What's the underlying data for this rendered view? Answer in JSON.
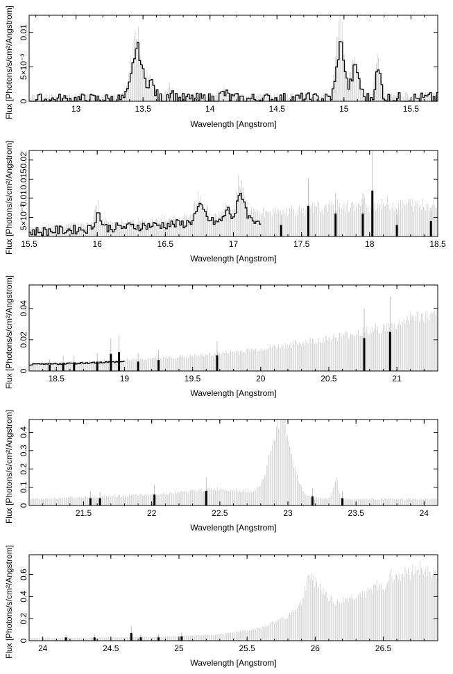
{
  "chart_data": [
    {
      "type": "histogram-step",
      "xlabel": "Wavelength [Angstrom]",
      "ylabel": "Flux [Photons/s/cm²/Angstrom]",
      "xlim": [
        12.65,
        15.7
      ],
      "ylim": [
        0,
        0.0125
      ],
      "xticks": [
        {
          "v": 13,
          "label": "13"
        },
        {
          "v": 13.5,
          "label": "13.5"
        },
        {
          "v": 14,
          "label": "14"
        },
        {
          "v": 14.5,
          "label": "14.5"
        },
        {
          "v": 15,
          "label": "15"
        },
        {
          "v": 15.5,
          "label": "15.5"
        }
      ],
      "yticks": [
        {
          "v": 0,
          "label": "0"
        },
        {
          "v": 0.005,
          "label": "5×10⁻³"
        },
        {
          "v": 0.01,
          "label": "0.01"
        }
      ],
      "baseline": [
        [
          12.65,
          0.0002
        ],
        [
          15.7,
          0.0004
        ]
      ],
      "features": [
        {
          "c": 13.45,
          "a": 0.0075,
          "w": 0.05
        },
        {
          "c": 13.55,
          "a": 0.0025,
          "w": 0.04
        },
        {
          "c": 14.97,
          "a": 0.008,
          "w": 0.04
        },
        {
          "c": 15.08,
          "a": 0.0045,
          "w": 0.04
        },
        {
          "c": 15.25,
          "a": 0.004,
          "w": 0.03
        },
        {
          "c": 13.7,
          "a": 0.0012,
          "w": 0.03
        },
        {
          "c": 14.1,
          "a": 0.0008,
          "w": 0.04
        }
      ],
      "noise": 0.0009,
      "step_min": 12.65,
      "step_max": 15.7,
      "errorbar_scale": 0.5
    },
    {
      "type": "histogram-step",
      "xlabel": "Wavelength [Angstrom]",
      "ylabel": "Flux [Photons/s/cm²/Angstrom]",
      "xlim": [
        15.5,
        18.5
      ],
      "ylim": [
        0,
        0.0225
      ],
      "xticks": [
        {
          "v": 15.5,
          "label": "15.5"
        },
        {
          "v": 16,
          "label": "16"
        },
        {
          "v": 16.5,
          "label": "16.5"
        },
        {
          "v": 17,
          "label": "17"
        },
        {
          "v": 17.5,
          "label": "17.5"
        },
        {
          "v": 18,
          "label": "18"
        },
        {
          "v": 18.5,
          "label": "18.5"
        }
      ],
      "yticks": [
        {
          "v": 0.005,
          "label": "5×10⁻³"
        },
        {
          "v": 0.01,
          "label": "0.01"
        },
        {
          "v": 0.015,
          "label": "0.015"
        },
        {
          "v": 0.02,
          "label": "0.02"
        }
      ],
      "baseline": [
        [
          15.5,
          0.0012
        ],
        [
          16.2,
          0.0025
        ],
        [
          17.0,
          0.004
        ],
        [
          18.0,
          0.006
        ],
        [
          18.5,
          0.006
        ]
      ],
      "features": [
        {
          "c": 16.0,
          "a": 0.004,
          "w": 0.03
        },
        {
          "c": 16.75,
          "a": 0.004,
          "w": 0.05
        },
        {
          "c": 17.05,
          "a": 0.007,
          "w": 0.04
        },
        {
          "c": 16.95,
          "a": 0.003,
          "w": 0.03
        }
      ],
      "spikes": [
        [
          17.35,
          0.003
        ],
        [
          17.55,
          0.008
        ],
        [
          17.75,
          0.006
        ],
        [
          17.95,
          0.006
        ],
        [
          18.02,
          0.012
        ],
        [
          18.2,
          0.003
        ],
        [
          18.45,
          0.004
        ]
      ],
      "noise": 0.0012,
      "step_min": 15.5,
      "step_max": 17.2,
      "errorbar_scale": 0.6
    },
    {
      "type": "errorbar",
      "xlabel": "Wavelength [Angstrom]",
      "ylabel": "Flux [Photons/s/cm²/Angstrom]",
      "xlim": [
        18.3,
        21.3
      ],
      "ylim": [
        0,
        0.055
      ],
      "xticks": [
        {
          "v": 18.5,
          "label": "18.5"
        },
        {
          "v": 19,
          "label": "19"
        },
        {
          "v": 19.5,
          "label": "19.5"
        },
        {
          "v": 20,
          "label": "20"
        },
        {
          "v": 20.5,
          "label": "20.5"
        },
        {
          "v": 21,
          "label": "21"
        }
      ],
      "yticks": [
        {
          "v": 0,
          "label": "0"
        },
        {
          "v": 0.02,
          "label": "0.02"
        },
        {
          "v": 0.04,
          "label": "0.04"
        }
      ],
      "baseline": [
        [
          18.3,
          0.004
        ],
        [
          19.0,
          0.006
        ],
        [
          19.5,
          0.008
        ],
        [
          20.0,
          0.012
        ],
        [
          20.5,
          0.018
        ],
        [
          21.0,
          0.025
        ],
        [
          21.1,
          0.03
        ],
        [
          21.3,
          0.03
        ]
      ],
      "features": [],
      "spikes": [
        [
          18.45,
          0.004
        ],
        [
          18.55,
          0.005
        ],
        [
          18.63,
          0.005
        ],
        [
          18.8,
          0.006
        ],
        [
          18.9,
          0.011
        ],
        [
          18.96,
          0.012
        ],
        [
          19.1,
          0.006
        ],
        [
          19.25,
          0.007
        ],
        [
          19.68,
          0.01
        ],
        [
          20.76,
          0.021
        ],
        [
          20.95,
          0.025
        ]
      ],
      "noise": 0.0005,
      "step_min": 18.3,
      "step_max": 19.0,
      "errorbar_scale": 0.3
    },
    {
      "type": "errorbar",
      "xlabel": "Wavelength [Angstrom]",
      "ylabel": "Flux [Photons/s/cm²/Angstrom]",
      "xlim": [
        21.1,
        24.1
      ],
      "ylim": [
        0,
        0.47
      ],
      "xticks": [
        {
          "v": 21.5,
          "label": "21.5"
        },
        {
          "v": 22,
          "label": "22"
        },
        {
          "v": 22.5,
          "label": "22.5"
        },
        {
          "v": 23,
          "label": "23"
        },
        {
          "v": 23.5,
          "label": "23.5"
        },
        {
          "v": 24,
          "label": "24"
        }
      ],
      "yticks": [
        {
          "v": 0,
          "label": "0"
        },
        {
          "v": 0.1,
          "label": "0.1"
        },
        {
          "v": 0.2,
          "label": "0.2"
        },
        {
          "v": 0.3,
          "label": "0.3"
        },
        {
          "v": 0.4,
          "label": "0.4"
        }
      ],
      "baseline": [
        [
          21.1,
          0.03
        ],
        [
          22.0,
          0.05
        ],
        [
          22.5,
          0.08
        ],
        [
          23.0,
          0.05
        ],
        [
          23.3,
          0.03
        ],
        [
          24.1,
          0.03
        ]
      ],
      "features": [
        {
          "c": 22.95,
          "a": 0.36,
          "w": 0.1
        },
        {
          "c": 23.35,
          "a": 0.1,
          "w": 0.025
        }
      ],
      "spikes": [
        [
          21.55,
          0.04
        ],
        [
          21.62,
          0.04
        ],
        [
          22.02,
          0.06
        ],
        [
          22.4,
          0.08
        ],
        [
          23.18,
          0.05
        ],
        [
          23.4,
          0.04
        ]
      ],
      "noise": 0.002,
      "step_min": 21.1,
      "step_max": 21.1,
      "errorbar_scale": 0.3
    },
    {
      "type": "errorbar",
      "xlabel": "Wavelength [Angstrom]",
      "ylabel": "Flux [Photons/s/cm²/Angstrom]",
      "xlim": [
        23.9,
        26.9
      ],
      "ylim": [
        0,
        0.78
      ],
      "xticks": [
        {
          "v": 24,
          "label": "24"
        },
        {
          "v": 24.5,
          "label": "24.5"
        },
        {
          "v": 25,
          "label": "25"
        },
        {
          "v": 25.5,
          "label": "25.5"
        },
        {
          "v": 26,
          "label": "26"
        },
        {
          "v": 26.5,
          "label": "26.5"
        }
      ],
      "yticks": [
        {
          "v": 0,
          "label": "0"
        },
        {
          "v": 0.2,
          "label": "0.2"
        },
        {
          "v": 0.4,
          "label": "0.4"
        },
        {
          "v": 0.6,
          "label": "0.6"
        }
      ],
      "baseline": [
        [
          23.9,
          0.02
        ],
        [
          24.5,
          0.025
        ],
        [
          25.0,
          0.035
        ],
        [
          25.3,
          0.05
        ],
        [
          25.6,
          0.1
        ],
        [
          25.8,
          0.2
        ],
        [
          25.9,
          0.3
        ],
        [
          25.95,
          0.53
        ],
        [
          26.15,
          0.3
        ],
        [
          26.4,
          0.4
        ],
        [
          26.45,
          0.44
        ],
        [
          26.5,
          0.42
        ],
        [
          26.55,
          0.52
        ],
        [
          26.7,
          0.55
        ],
        [
          26.78,
          0.6
        ],
        [
          26.85,
          0.52
        ],
        [
          26.9,
          0.58
        ]
      ],
      "features": [],
      "spikes": [
        [
          24.17,
          0.03
        ],
        [
          24.38,
          0.03
        ],
        [
          24.65,
          0.07
        ],
        [
          24.72,
          0.03
        ],
        [
          24.85,
          0.03
        ],
        [
          25.02,
          0.04
        ]
      ],
      "noise": 0.003,
      "step_min": 23.9,
      "step_max": 23.9,
      "errorbar_scale": 0.25
    }
  ]
}
